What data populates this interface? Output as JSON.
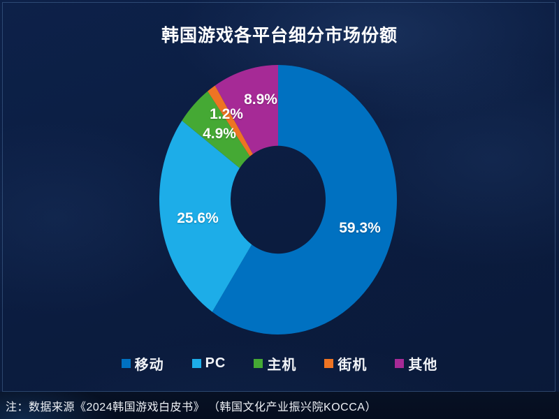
{
  "title": "韩国游戏各平台细分市场份额",
  "footer": {
    "note": "注：数据来源《2024韩国游戏白皮书》 （韩国文化产业振兴院KOCCA）"
  },
  "colors": {
    "background": "#0b1c3f",
    "bottom_band": "#050d1f",
    "frame_border": "#60689b",
    "text": "#ffffff"
  },
  "chart_data": {
    "type": "pie",
    "title": "韩国游戏各平台细分市场份额",
    "donut": true,
    "inner_radius_ratio": 0.4,
    "start_angle_deg": 0,
    "direction": "clockwise",
    "legend_position": "bottom",
    "grid": false,
    "slices": [
      {
        "label": "移动",
        "value": 59.3,
        "display": "59.3%",
        "color": "#0071c1"
      },
      {
        "label": "PC",
        "value": 25.6,
        "display": "25.6%",
        "color": "#1dade8"
      },
      {
        "label": "主机",
        "value": 4.9,
        "display": "4.9%",
        "color": "#45a934"
      },
      {
        "label": "街机",
        "value": 1.2,
        "display": "1.2%",
        "color": "#ee7423"
      },
      {
        "label": "其他",
        "value": 8.9,
        "display": "8.9%",
        "color": "#a62a96"
      }
    ]
  }
}
